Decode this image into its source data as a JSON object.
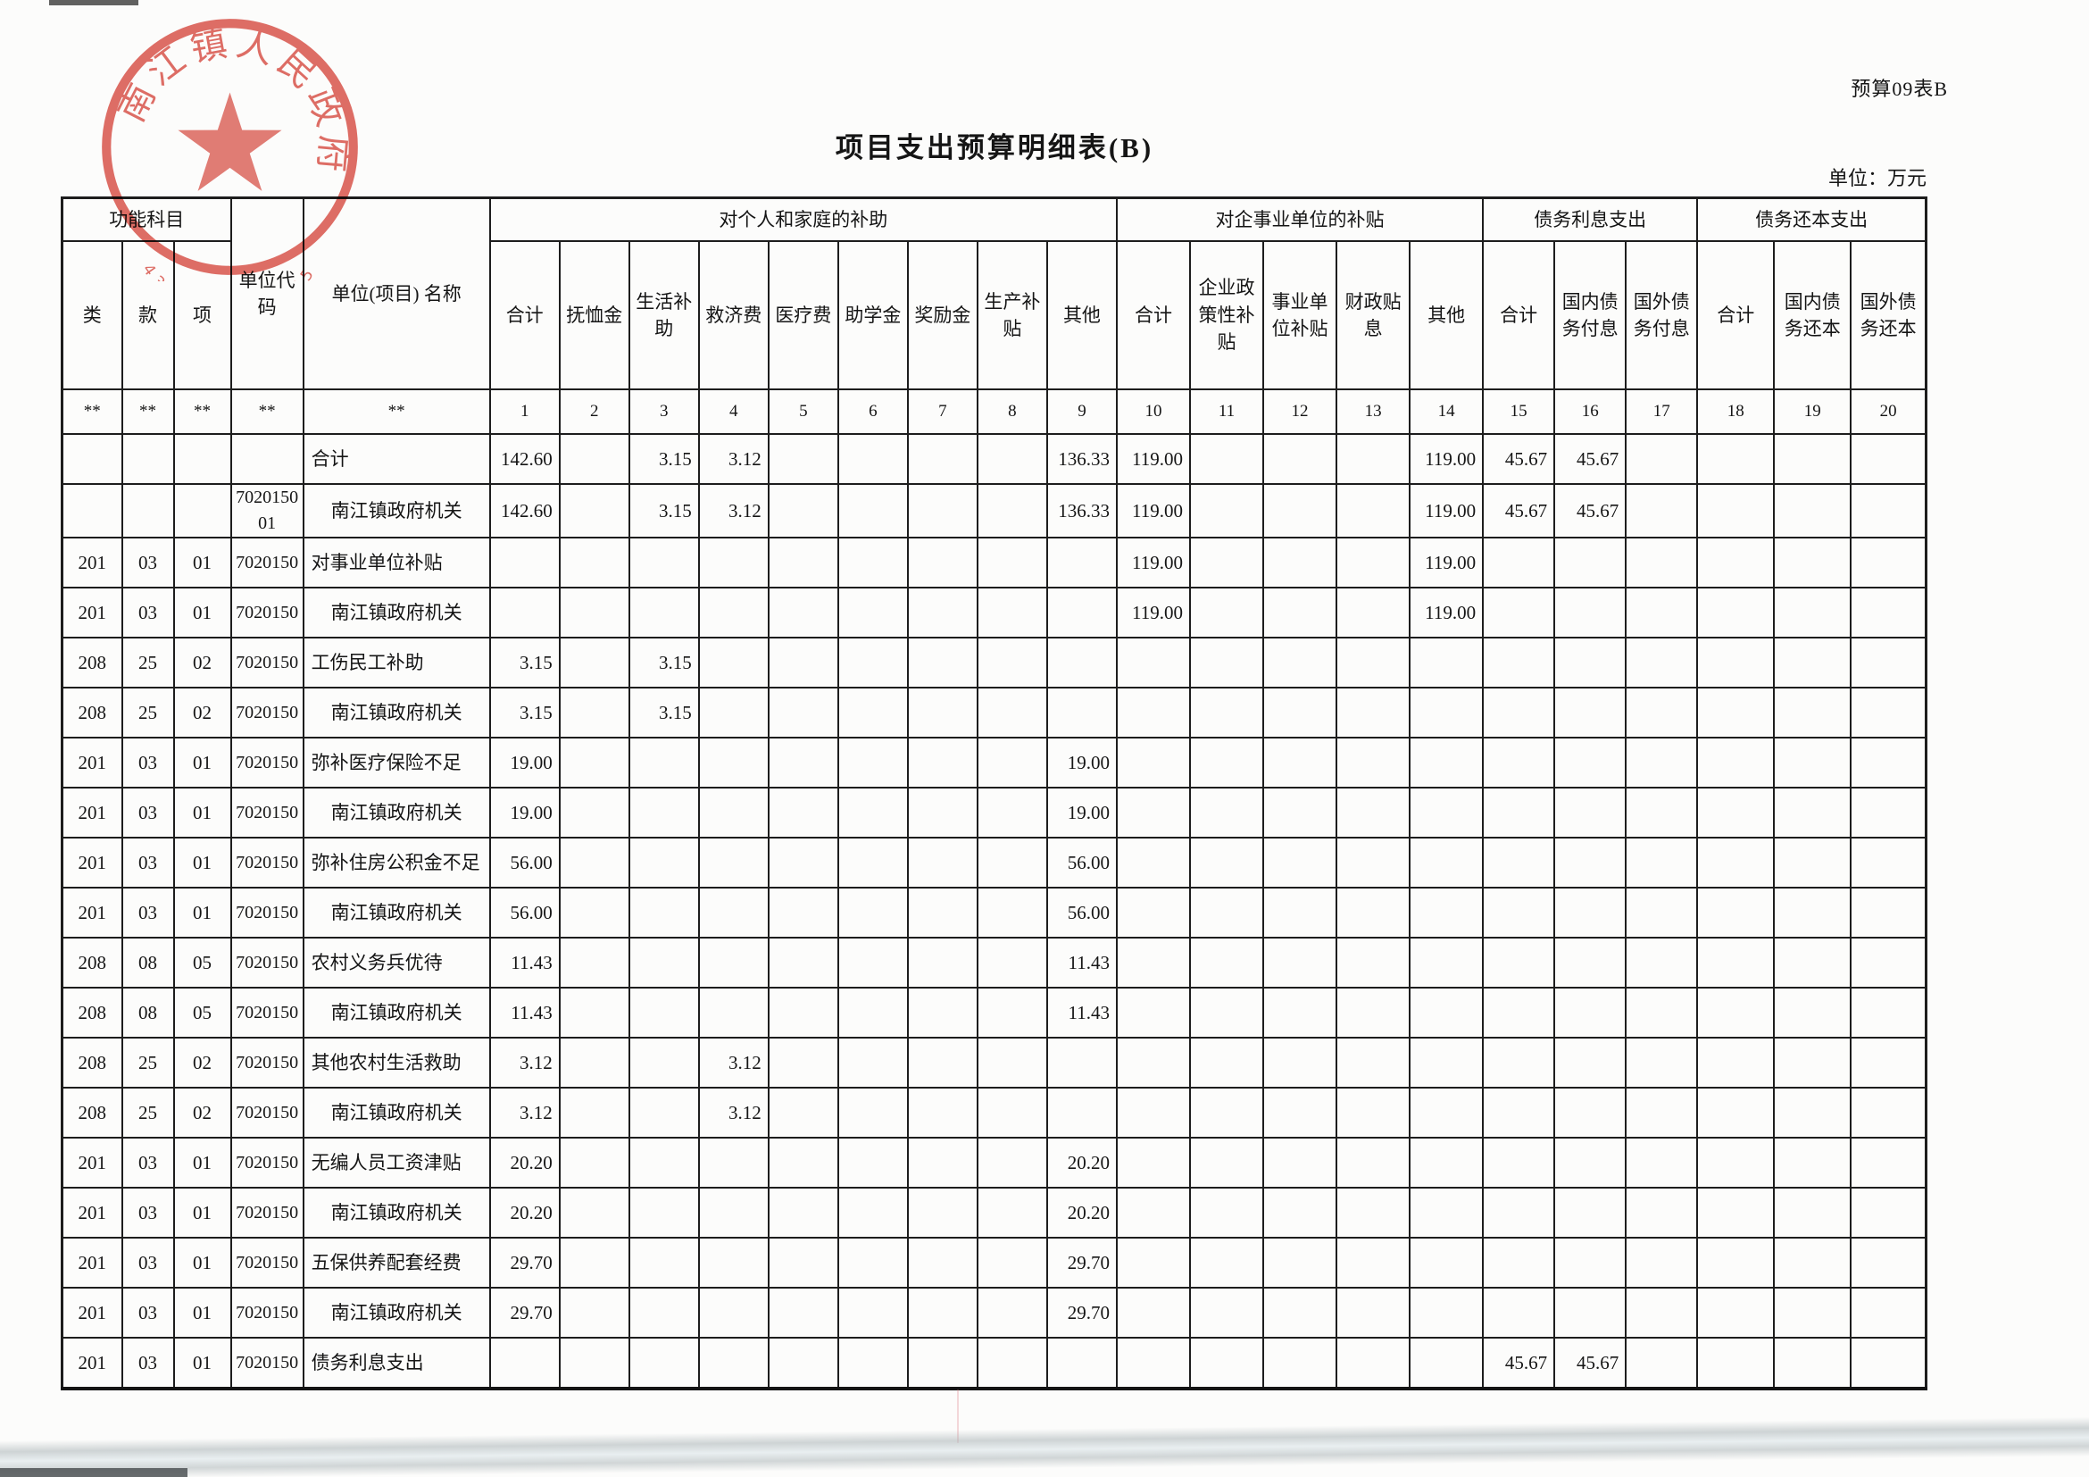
{
  "page": {
    "form_code": "预算09表B",
    "title": "项目支出预算明细表(B)",
    "unit_note": "单位：万元"
  },
  "seal": {
    "org_text": "南江镇人民政府",
    "code_text": "4306000040595",
    "color": "#d94f46"
  },
  "table": {
    "header": {
      "func_group": "功能科目",
      "lei": "类",
      "kuan": "款",
      "xiang": "项",
      "unit_code": "单位代码",
      "unit_name": "单位(项目) 名称",
      "groups": [
        {
          "label": "对个人和家庭的补助",
          "cols": [
            "合计",
            "抚恤金",
            "生活补助",
            "救济费",
            "医疗费",
            "助学金",
            "奖励金",
            "生产补贴",
            "其他"
          ]
        },
        {
          "label": "对企事业单位的补贴",
          "cols": [
            "合计",
            "企业政策性补贴",
            "事业单位补贴",
            "财政贴息",
            "其他"
          ]
        },
        {
          "label": "债务利息支出",
          "cols": [
            "合计",
            "国内债务付息",
            "国外债务付息"
          ]
        },
        {
          "label": "债务还本支出",
          "cols": [
            "合计",
            "国内债务还本",
            "国外债务还本"
          ]
        }
      ],
      "index_row": [
        "**",
        "**",
        "**",
        "**",
        "**",
        "1",
        "2",
        "3",
        "4",
        "5",
        "6",
        "7",
        "8",
        "9",
        "10",
        "11",
        "12",
        "13",
        "14",
        "15",
        "16",
        "17",
        "18",
        "19",
        "20"
      ]
    },
    "rows": [
      {
        "lei": "",
        "kuan": "",
        "xiang": "",
        "code": "",
        "name": "合计",
        "style": "total",
        "v": {
          "1": "142.60",
          "3": "3.15",
          "4": "3.12",
          "9": "136.33",
          "10": "119.00",
          "14": "119.00",
          "15": "45.67",
          "16": "45.67"
        }
      },
      {
        "lei": "",
        "kuan": "",
        "xiang": "",
        "code": "7020150\n01",
        "name": "南江镇政府机关",
        "style": "unit",
        "v": {
          "1": "142.60",
          "3": "3.15",
          "4": "3.12",
          "9": "136.33",
          "10": "119.00",
          "14": "119.00",
          "15": "45.67",
          "16": "45.67"
        }
      },
      {
        "lei": "201",
        "kuan": "03",
        "xiang": "01",
        "code": "7020150",
        "name": "对事业单位补贴",
        "style": "item",
        "v": {
          "10": "119.00",
          "14": "119.00"
        }
      },
      {
        "lei": "201",
        "kuan": "03",
        "xiang": "01",
        "code": "7020150",
        "name": "南江镇政府机关",
        "style": "unit",
        "v": {
          "10": "119.00",
          "14": "119.00"
        }
      },
      {
        "lei": "208",
        "kuan": "25",
        "xiang": "02",
        "code": "7020150",
        "name": "工伤民工补助",
        "style": "item",
        "v": {
          "1": "3.15",
          "3": "3.15"
        }
      },
      {
        "lei": "208",
        "kuan": "25",
        "xiang": "02",
        "code": "7020150",
        "name": "南江镇政府机关",
        "style": "unit",
        "v": {
          "1": "3.15",
          "3": "3.15"
        }
      },
      {
        "lei": "201",
        "kuan": "03",
        "xiang": "01",
        "code": "7020150",
        "name": "弥补医疗保险不足",
        "style": "item",
        "v": {
          "1": "19.00",
          "9": "19.00"
        }
      },
      {
        "lei": "201",
        "kuan": "03",
        "xiang": "01",
        "code": "7020150",
        "name": "南江镇政府机关",
        "style": "unit",
        "v": {
          "1": "19.00",
          "9": "19.00"
        }
      },
      {
        "lei": "201",
        "kuan": "03",
        "xiang": "01",
        "code": "7020150",
        "name": "弥补住房公积金不足",
        "style": "item",
        "v": {
          "1": "56.00",
          "9": "56.00"
        }
      },
      {
        "lei": "201",
        "kuan": "03",
        "xiang": "01",
        "code": "7020150",
        "name": "南江镇政府机关",
        "style": "unit",
        "v": {
          "1": "56.00",
          "9": "56.00"
        }
      },
      {
        "lei": "208",
        "kuan": "08",
        "xiang": "05",
        "code": "7020150",
        "name": "农村义务兵优待",
        "style": "item",
        "v": {
          "1": "11.43",
          "9": "11.43"
        }
      },
      {
        "lei": "208",
        "kuan": "08",
        "xiang": "05",
        "code": "7020150",
        "name": "南江镇政府机关",
        "style": "unit",
        "v": {
          "1": "11.43",
          "9": "11.43"
        }
      },
      {
        "lei": "208",
        "kuan": "25",
        "xiang": "02",
        "code": "7020150",
        "name": "其他农村生活救助",
        "style": "item",
        "v": {
          "1": "3.12",
          "4": "3.12"
        }
      },
      {
        "lei": "208",
        "kuan": "25",
        "xiang": "02",
        "code": "7020150",
        "name": "南江镇政府机关",
        "style": "unit",
        "v": {
          "1": "3.12",
          "4": "3.12"
        }
      },
      {
        "lei": "201",
        "kuan": "03",
        "xiang": "01",
        "code": "7020150",
        "name": "无编人员工资津贴",
        "style": "item",
        "v": {
          "1": "20.20",
          "9": "20.20"
        }
      },
      {
        "lei": "201",
        "kuan": "03",
        "xiang": "01",
        "code": "7020150",
        "name": "南江镇政府机关",
        "style": "unit",
        "v": {
          "1": "20.20",
          "9": "20.20"
        }
      },
      {
        "lei": "201",
        "kuan": "03",
        "xiang": "01",
        "code": "7020150",
        "name": "五保供养配套经费",
        "style": "item",
        "v": {
          "1": "29.70",
          "9": "29.70"
        }
      },
      {
        "lei": "201",
        "kuan": "03",
        "xiang": "01",
        "code": "7020150",
        "name": "南江镇政府机关",
        "style": "unit",
        "v": {
          "1": "29.70",
          "9": "29.70"
        }
      },
      {
        "lei": "201",
        "kuan": "03",
        "xiang": "01",
        "code": "7020150",
        "name": "债务利息支出",
        "style": "item",
        "v": {
          "15": "45.67",
          "16": "45.67"
        }
      }
    ]
  }
}
